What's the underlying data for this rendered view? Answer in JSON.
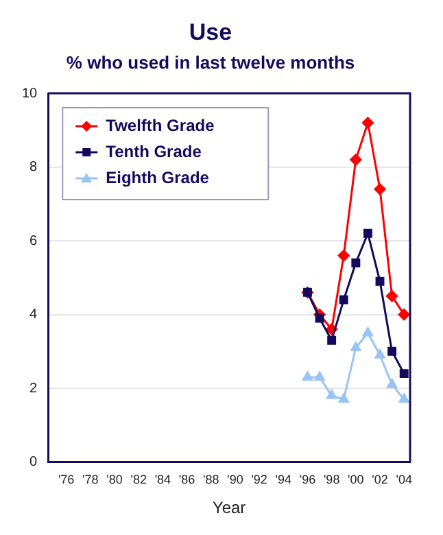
{
  "chart_data": {
    "type": "line",
    "title": "Use",
    "subtitle": "% who used in last twelve months",
    "xlabel": "Year",
    "categories": [
      null,
      "'76",
      null,
      "'78",
      null,
      "'80",
      null,
      "'82",
      null,
      "'84",
      null,
      "'86",
      null,
      "'88",
      null,
      "'90",
      null,
      "'92",
      null,
      "'94",
      null,
      "'96",
      null,
      "'98",
      null,
      "'00",
      null,
      "'02",
      null,
      "'04"
    ],
    "series": [
      {
        "name": "Twelfth Grade",
        "color": "#ff0000",
        "marker": "diamond",
        "values": [
          null,
          null,
          null,
          null,
          null,
          null,
          null,
          null,
          null,
          null,
          null,
          null,
          null,
          null,
          null,
          null,
          null,
          null,
          null,
          null,
          null,
          4.6,
          4.0,
          3.6,
          5.6,
          8.2,
          9.2,
          7.4,
          4.5,
          4.0
        ]
      },
      {
        "name": "Tenth Grade",
        "color": "#140a5c",
        "marker": "square",
        "values": [
          null,
          null,
          null,
          null,
          null,
          null,
          null,
          null,
          null,
          null,
          null,
          null,
          null,
          null,
          null,
          null,
          null,
          null,
          null,
          null,
          null,
          4.6,
          3.9,
          3.3,
          4.4,
          5.4,
          6.2,
          4.9,
          3.0,
          2.4
        ]
      },
      {
        "name": "Eighth Grade",
        "color": "#99c4f5",
        "marker": "triangle",
        "values": [
          null,
          null,
          null,
          null,
          null,
          null,
          null,
          null,
          null,
          null,
          null,
          null,
          null,
          null,
          null,
          null,
          null,
          null,
          null,
          null,
          null,
          2.3,
          2.3,
          1.8,
          1.7,
          3.1,
          3.5,
          2.9,
          2.1,
          1.7
        ]
      }
    ],
    "ylim": [
      0,
      10
    ],
    "yticks": [
      0,
      2,
      4,
      6,
      8,
      10
    ],
    "grid": "y",
    "legend": "top left"
  }
}
